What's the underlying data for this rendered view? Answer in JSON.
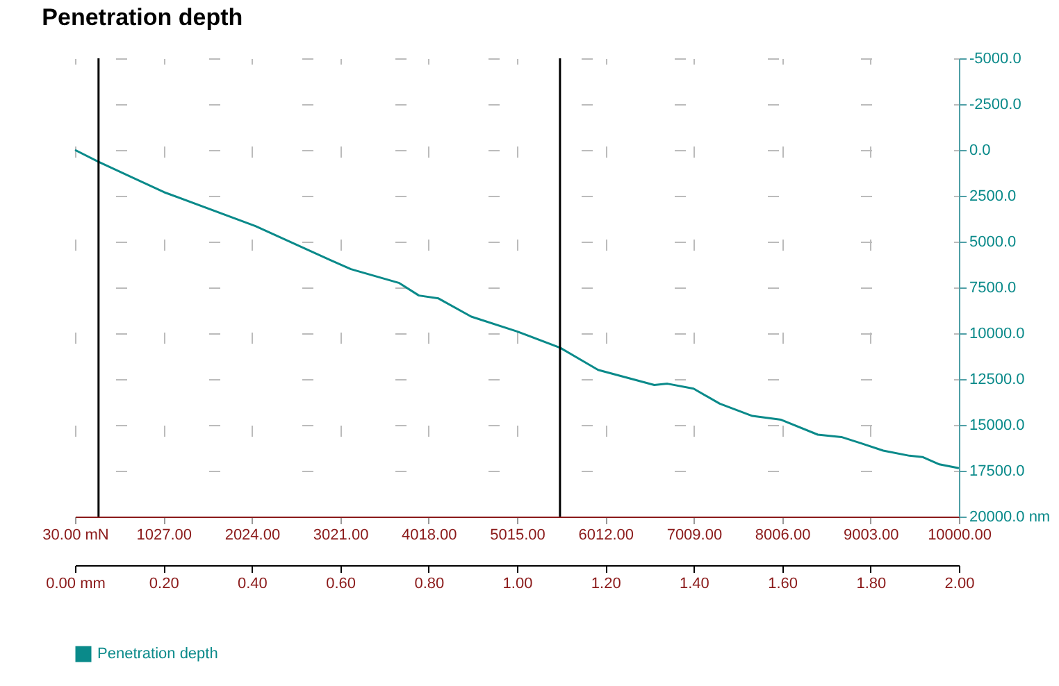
{
  "chart_data": {
    "type": "line",
    "title": "Penetration depth",
    "x": [
      30,
      296,
      1033,
      2065,
      2906,
      3142,
      3688,
      3909,
      4130,
      4499,
      5016,
      5502,
      5930,
      6564,
      6712,
      7007,
      7302,
      7670,
      7995,
      8408,
      8674,
      8895,
      9146,
      9441,
      9588,
      9780,
      10000
    ],
    "series": [
      {
        "name": "Penetration depth",
        "color": "#0a8a8a",
        "values": [
          0,
          650,
          2300,
          4150,
          6000,
          6500,
          7260,
          7940,
          8100,
          9090,
          9900,
          10790,
          12000,
          12820,
          12750,
          13020,
          13840,
          14510,
          14720,
          15530,
          15660,
          16000,
          16400,
          16680,
          16750,
          17150,
          17360
        ]
      }
    ],
    "xlim": [
      30,
      10000
    ],
    "xticks": [
      {
        "value": 30,
        "label": "30.00 mN"
      },
      {
        "value": 1027,
        "label": "1027.00"
      },
      {
        "value": 2024,
        "label": "2024.00"
      },
      {
        "value": 3021,
        "label": "3021.00"
      },
      {
        "value": 4018,
        "label": "4018.00"
      },
      {
        "value": 5015,
        "label": "5015.00"
      },
      {
        "value": 6012,
        "label": "6012.00"
      },
      {
        "value": 7009,
        "label": "7009.00"
      },
      {
        "value": 8006,
        "label": "8006.00"
      },
      {
        "value": 9003,
        "label": "9003.00"
      },
      {
        "value": 10000,
        "label": "10000.00"
      }
    ],
    "x2lim": [
      0,
      2
    ],
    "x2ticks": [
      {
        "value": 0,
        "label": "0.00 mm"
      },
      {
        "value": 0.2,
        "label": "0.20"
      },
      {
        "value": 0.4,
        "label": "0.40"
      },
      {
        "value": 0.6,
        "label": "0.60"
      },
      {
        "value": 0.8,
        "label": "0.80"
      },
      {
        "value": 1,
        "label": "1.00"
      },
      {
        "value": 1.2,
        "label": "1.20"
      },
      {
        "value": 1.4,
        "label": "1.40"
      },
      {
        "value": 1.6,
        "label": "1.60"
      },
      {
        "value": 1.8,
        "label": "1.80"
      },
      {
        "value": 2,
        "label": "2.00"
      }
    ],
    "ylim": [
      20000,
      -5000
    ],
    "yticks": [
      {
        "value": -5000,
        "label": "-5000.0"
      },
      {
        "value": -2500,
        "label": "-2500.0"
      },
      {
        "value": 0,
        "label": "0.0"
      },
      {
        "value": 2500,
        "label": "2500.0"
      },
      {
        "value": 5000,
        "label": "5000.0"
      },
      {
        "value": 7500,
        "label": "7500.0"
      },
      {
        "value": 10000,
        "label": "10000.0"
      },
      {
        "value": 12500,
        "label": "12500.0"
      },
      {
        "value": 15000,
        "label": "15000.0"
      },
      {
        "value": 17500,
        "label": "17500.0"
      },
      {
        "value": 20000,
        "label": "20000.0 nm"
      }
    ],
    "ref_lines": [
      {
        "axis": "x",
        "value": 295,
        "color": "#000000"
      },
      {
        "axis": "x",
        "value": 5500,
        "color": "#000000"
      }
    ],
    "grid": true,
    "legend": "bottom"
  }
}
